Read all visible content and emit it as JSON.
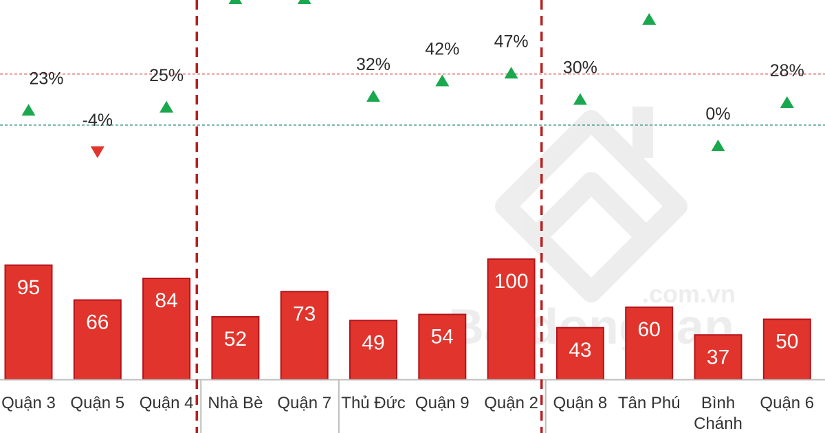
{
  "chart_data": {
    "type": "bar",
    "categories": [
      "Quận 3",
      "Quận 5",
      "Quận 4",
      "Nhà Bè",
      "Quận 7",
      "Thủ Đức",
      "Quận 9",
      "Quận 2",
      "Quận 8",
      "Tân Phú",
      "Bình Chánh",
      "Quận 6"
    ],
    "series": [
      {
        "values": [
          95,
          66,
          84,
          52,
          73,
          49,
          54,
          100,
          43,
          60,
          37,
          50
        ]
      },
      {
        "values": [
          23,
          -4,
          25,
          null,
          null,
          32,
          42,
          47,
          30,
          null,
          0,
          28
        ]
      }
    ],
    "value_labels": [
      "95",
      "66",
      "84",
      "52",
      "73",
      "49",
      "54",
      "100",
      "43",
      "60",
      "37",
      "50"
    ],
    "change_labels": [
      "23%",
      "-4%",
      "25%",
      "",
      "",
      "32%",
      "42%",
      "47%",
      "30%",
      "",
      "0%",
      "28%"
    ],
    "groups": [
      {
        "start": 0,
        "end": 2
      },
      {
        "start": 3,
        "end": 7
      },
      {
        "start": 8,
        "end": 11
      }
    ],
    "bar_color": "#e0342c",
    "bar_border": "#b3131a",
    "up_color": "#1aa84f",
    "down_color": "#e0342c",
    "reference_lines": [
      {
        "value": 0,
        "color": "#2e8b7a"
      },
      {
        "value": 33,
        "color": "#d94a4a"
      }
    ],
    "divider_color": "#b82020",
    "grid": false,
    "legend": "none"
  },
  "watermark": {
    "brand": "Batdongsan",
    "domain": ".com.vn"
  }
}
